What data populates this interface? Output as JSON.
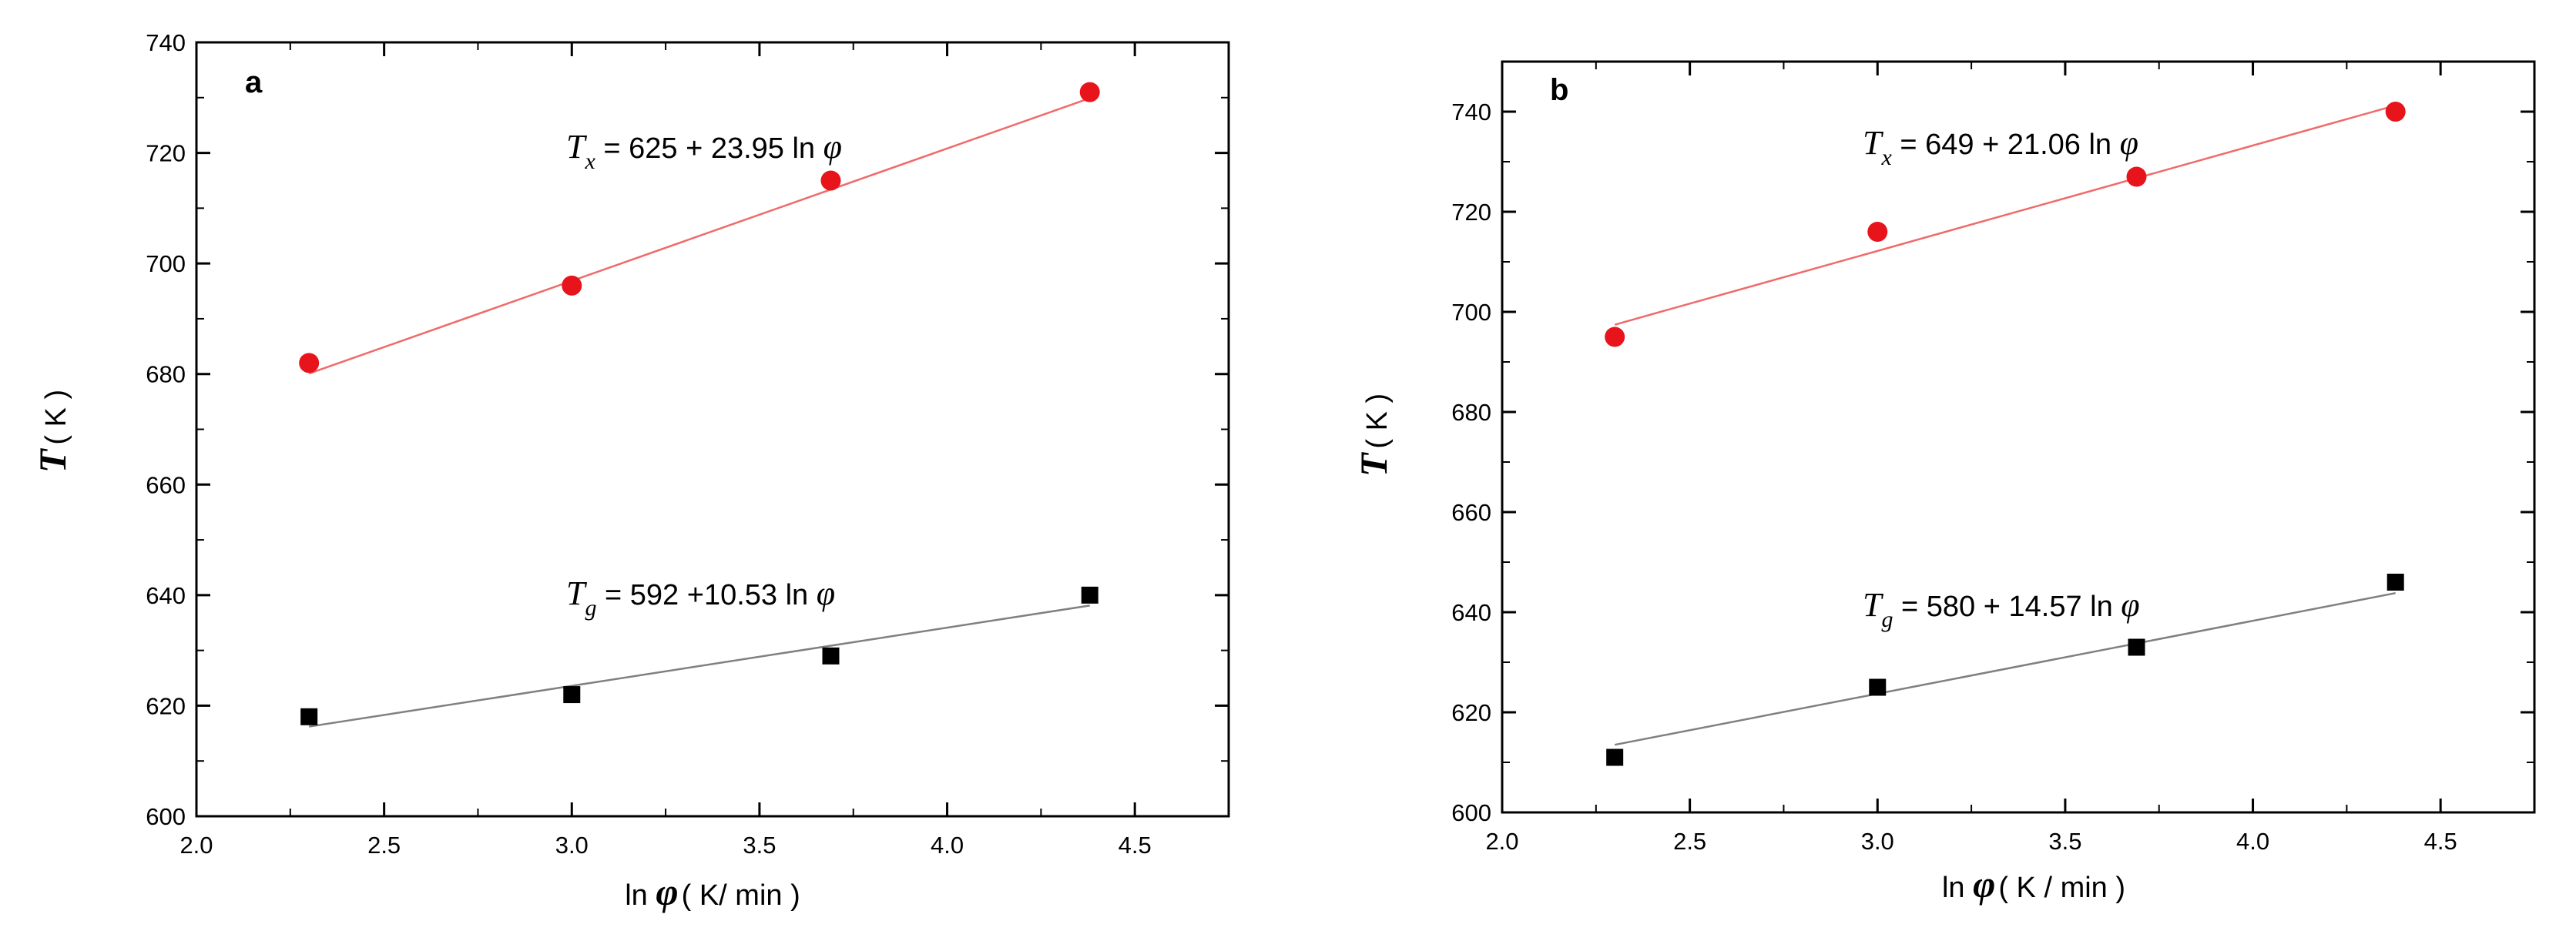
{
  "chart_data": [
    {
      "type": "scatter",
      "panel_label": "a",
      "xlabel_prefix": "ln ",
      "xlabel_var": "φ",
      "xlabel_unit": "( K/ min )",
      "ylabel_var": "T",
      "ylabel_unit": "( K )",
      "xlim": [
        2.0,
        4.75
      ],
      "ylim": [
        600,
        740
      ],
      "xticks": [
        "2.0",
        "2.5",
        "3.0",
        "3.5",
        "4.0",
        "4.5"
      ],
      "yticks": [
        "600",
        "620",
        "640",
        "660",
        "680",
        "700",
        "720",
        "740"
      ],
      "xtick_values": [
        2.0,
        2.5,
        3.0,
        3.5,
        4.0,
        4.5
      ],
      "ytick_values": [
        600,
        620,
        640,
        660,
        680,
        700,
        720,
        740
      ],
      "series": [
        {
          "marker": "circle",
          "color": "#e8141c",
          "line_color": "#f06a6a",
          "points": [
            {
              "x": 2.3,
              "y": 682
            },
            {
              "x": 3.0,
              "y": 696
            },
            {
              "x": 3.69,
              "y": 715
            },
            {
              "x": 4.38,
              "y": 731
            }
          ],
          "fit": {
            "intercept": 625,
            "slope": 23.95
          },
          "equation": {
            "var": "T",
            "sub": "x",
            "text": " = 625 + 23.95 ln ",
            "phi": "φ"
          }
        },
        {
          "marker": "square",
          "color": "#000000",
          "line_color": "#808080",
          "points": [
            {
              "x": 2.3,
              "y": 618
            },
            {
              "x": 3.0,
              "y": 622
            },
            {
              "x": 3.69,
              "y": 629
            },
            {
              "x": 4.38,
              "y": 640
            }
          ],
          "fit": {
            "intercept": 592,
            "slope": 10.53
          },
          "equation": {
            "var": "T",
            "sub": "g",
            "text": " = 592 +10.53 ln ",
            "phi": "φ"
          }
        }
      ]
    },
    {
      "type": "scatter",
      "panel_label": "b",
      "xlabel_prefix": "ln ",
      "xlabel_var": "φ",
      "xlabel_unit": "( K / min )",
      "ylabel_var": "T",
      "ylabel_unit": "( K )",
      "xlim": [
        2.0,
        4.75
      ],
      "ylim": [
        600,
        750
      ],
      "xticks": [
        "2.0",
        "2.5",
        "3.0",
        "3.5",
        "4.0",
        "4.5"
      ],
      "yticks": [
        "600",
        "620",
        "640",
        "660",
        "680",
        "700",
        "720",
        "740"
      ],
      "xtick_values": [
        2.0,
        2.5,
        3.0,
        3.5,
        4.0,
        4.5
      ],
      "ytick_values": [
        600,
        620,
        640,
        660,
        680,
        700,
        720,
        740
      ],
      "series": [
        {
          "marker": "circle",
          "color": "#e8141c",
          "line_color": "#f06a6a",
          "points": [
            {
              "x": 2.3,
              "y": 695
            },
            {
              "x": 3.0,
              "y": 716
            },
            {
              "x": 3.69,
              "y": 727
            },
            {
              "x": 4.38,
              "y": 740
            }
          ],
          "fit": {
            "intercept": 649,
            "slope": 21.06
          },
          "equation": {
            "var": "T",
            "sub": "x",
            "text": " = 649 + 21.06 ln ",
            "phi": "φ"
          }
        },
        {
          "marker": "square",
          "color": "#000000",
          "line_color": "#808080",
          "points": [
            {
              "x": 2.3,
              "y": 611
            },
            {
              "x": 3.0,
              "y": 625
            },
            {
              "x": 3.69,
              "y": 633
            },
            {
              "x": 4.38,
              "y": 646
            }
          ],
          "fit": {
            "intercept": 580,
            "slope": 14.57
          },
          "equation": {
            "var": "T",
            "sub": "g",
            "text": " = 580 + 14.57 ln ",
            "phi": "φ"
          }
        }
      ]
    }
  ]
}
